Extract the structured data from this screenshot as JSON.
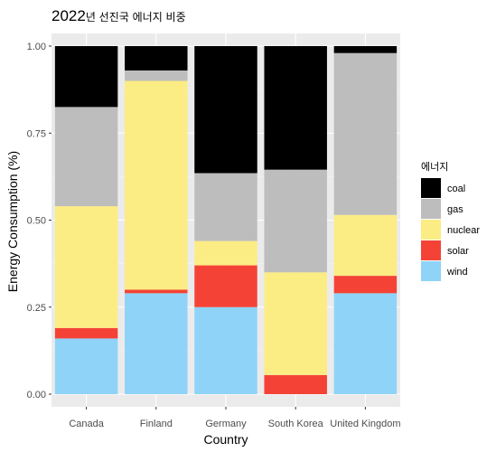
{
  "chart_data": {
    "type": "bar",
    "stacked": true,
    "title_year": "2022",
    "title_rest": "년 선진국 에너지 비중",
    "xlabel": "Country",
    "ylabel": "Energy Consumption (%)",
    "ylim": [
      0,
      1
    ],
    "yticks": [
      "0.00",
      "0.25",
      "0.50",
      "0.75",
      "1.00"
    ],
    "grid": true,
    "legend_position": "right",
    "legend_title": "에너지",
    "categories": [
      "Canada",
      "Finland",
      "Germany",
      "South Korea",
      "United Kingdom"
    ],
    "series": [
      {
        "name": "wind",
        "color": "#8fd3f8",
        "values": [
          0.16,
          0.29,
          0.25,
          0.0,
          0.29
        ]
      },
      {
        "name": "solar",
        "color": "#f44336",
        "values": [
          0.03,
          0.01,
          0.12,
          0.055,
          0.05
        ]
      },
      {
        "name": "nuclear",
        "color": "#fcec84",
        "values": [
          0.35,
          0.6,
          0.07,
          0.295,
          0.175
        ]
      },
      {
        "name": "gas",
        "color": "#bdbdbd",
        "values": [
          0.285,
          0.03,
          0.195,
          0.295,
          0.465
        ]
      },
      {
        "name": "coal",
        "color": "#000000",
        "values": [
          0.175,
          0.07,
          0.365,
          0.355,
          0.02
        ]
      }
    ]
  }
}
